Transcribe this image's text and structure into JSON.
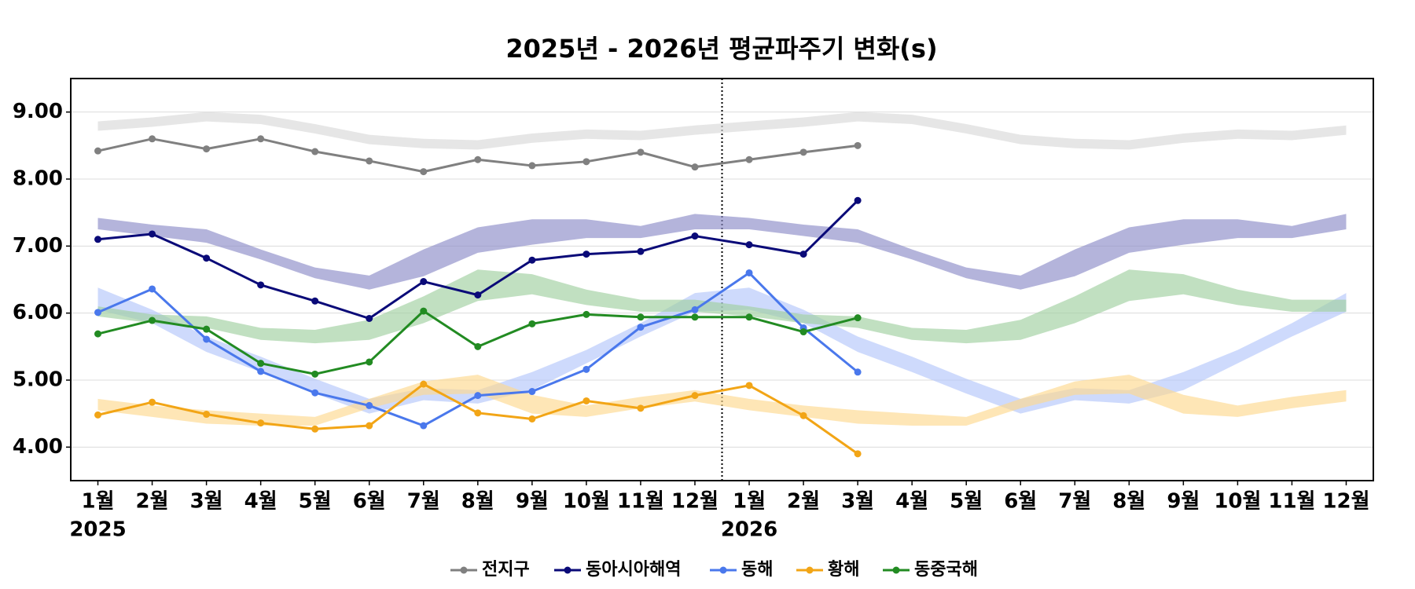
{
  "chart_data": {
    "type": "line",
    "title": "2025년 - 2026년 평균파주기 변화(s)",
    "categories": [
      "1월",
      "2월",
      "3월",
      "4월",
      "5월",
      "6월",
      "7월",
      "8월",
      "9월",
      "10월",
      "11월",
      "12월",
      "1월",
      "2월",
      "3월",
      "4월",
      "5월",
      "6월",
      "7월",
      "8월",
      "9월",
      "10월",
      "11월",
      "12월"
    ],
    "years": [
      "2025",
      null,
      null,
      null,
      null,
      null,
      null,
      null,
      null,
      null,
      null,
      null,
      "2026",
      null,
      null,
      null,
      null,
      null,
      null,
      null,
      null,
      null,
      null,
      null
    ],
    "ylim": [
      3.5,
      9.5
    ],
    "yticks": [
      {
        "value": 4,
        "label": "4.00"
      },
      {
        "value": 5,
        "label": "5.00"
      },
      {
        "value": 6,
        "label": "6.00"
      },
      {
        "value": 7,
        "label": "7.00"
      },
      {
        "value": 8,
        "label": "8.00"
      },
      {
        "value": 9,
        "label": "9.00"
      }
    ],
    "grid": true,
    "legend": "bottom",
    "series": [
      {
        "name": "전지구",
        "color": "#808080",
        "band_color": "#d9d9d9",
        "values": [
          8.42,
          8.6,
          8.45,
          8.6,
          8.41,
          8.27,
          8.11,
          8.29,
          8.2,
          8.26,
          8.4,
          8.18,
          8.29,
          8.4,
          8.5,
          null,
          null,
          null,
          null,
          null,
          null,
          null,
          null,
          null
        ],
        "band_low": [
          8.72,
          8.78,
          8.86,
          8.82,
          8.68,
          8.52,
          8.46,
          8.44,
          8.54,
          8.6,
          8.58,
          8.66,
          8.72,
          8.78,
          8.86,
          8.82,
          8.68,
          8.52,
          8.46,
          8.44,
          8.54,
          8.6,
          8.58,
          8.66
        ],
        "band_high": [
          8.86,
          8.92,
          9.0,
          8.96,
          8.82,
          8.66,
          8.6,
          8.58,
          8.68,
          8.74,
          8.72,
          8.8,
          8.86,
          8.92,
          9.0,
          8.96,
          8.82,
          8.66,
          8.6,
          8.58,
          8.68,
          8.74,
          8.72,
          8.8
        ]
      },
      {
        "name": "동아시아해역",
        "color": "#0a0a78",
        "band_color": "#8c8cc8",
        "values": [
          7.1,
          7.18,
          6.82,
          6.42,
          6.18,
          5.92,
          6.47,
          6.27,
          6.79,
          6.88,
          6.92,
          7.15,
          7.02,
          6.88,
          7.68,
          null,
          null,
          null,
          null,
          null,
          null,
          null,
          null,
          null
        ],
        "band_low": [
          7.25,
          7.15,
          7.05,
          6.8,
          6.52,
          6.35,
          6.55,
          6.9,
          7.02,
          7.12,
          7.12,
          7.25,
          7.25,
          7.15,
          7.05,
          6.8,
          6.52,
          6.35,
          6.55,
          6.9,
          7.02,
          7.12,
          7.12,
          7.25
        ],
        "band_high": [
          7.42,
          7.32,
          7.25,
          6.95,
          6.68,
          6.56,
          6.95,
          7.28,
          7.4,
          7.4,
          7.3,
          7.48,
          7.42,
          7.32,
          7.25,
          6.95,
          6.68,
          6.56,
          6.95,
          7.28,
          7.4,
          7.4,
          7.3,
          7.48
        ]
      },
      {
        "name": "동해",
        "color": "#4a78ec",
        "band_color": "#b3c6fb",
        "values": [
          6.01,
          6.36,
          5.61,
          5.13,
          4.81,
          4.62,
          4.32,
          4.77,
          4.83,
          5.16,
          5.79,
          6.05,
          6.6,
          5.78,
          5.12,
          null,
          null,
          null,
          null,
          null,
          null,
          null,
          null,
          null
        ],
        "band_low": [
          6.05,
          5.85,
          5.42,
          5.12,
          4.8,
          4.5,
          4.7,
          4.65,
          4.85,
          5.25,
          5.65,
          6.02,
          6.05,
          5.85,
          5.42,
          5.12,
          4.8,
          4.5,
          4.7,
          4.65,
          4.85,
          5.25,
          5.65,
          6.02
        ],
        "band_high": [
          6.38,
          6.05,
          5.65,
          5.35,
          5.02,
          4.72,
          4.88,
          4.85,
          5.12,
          5.45,
          5.85,
          6.3,
          6.38,
          6.05,
          5.65,
          5.35,
          5.02,
          4.72,
          4.88,
          4.85,
          5.12,
          5.45,
          5.85,
          6.3
        ]
      },
      {
        "name": "황해",
        "color": "#f2a516",
        "band_color": "#fdd98f",
        "values": [
          4.48,
          4.67,
          4.49,
          4.36,
          4.27,
          4.32,
          4.94,
          4.51,
          4.42,
          4.69,
          4.58,
          4.77,
          4.92,
          4.47,
          3.9,
          null,
          null,
          null,
          null,
          null,
          null,
          null,
          null,
          null
        ],
        "band_low": [
          4.55,
          4.45,
          4.35,
          4.32,
          4.32,
          4.58,
          4.78,
          4.8,
          4.5,
          4.45,
          4.58,
          4.68,
          4.55,
          4.45,
          4.35,
          4.32,
          4.32,
          4.58,
          4.78,
          4.8,
          4.5,
          4.45,
          4.58,
          4.68
        ],
        "band_high": [
          4.72,
          4.62,
          4.55,
          4.5,
          4.45,
          4.72,
          4.98,
          5.08,
          4.78,
          4.62,
          4.75,
          4.85,
          4.72,
          4.62,
          4.55,
          4.5,
          4.45,
          4.72,
          4.98,
          5.08,
          4.78,
          4.62,
          4.75,
          4.85
        ]
      },
      {
        "name": "동중국해",
        "color": "#228b22",
        "band_color": "#9fd09f",
        "values": [
          5.69,
          5.89,
          5.76,
          5.25,
          5.09,
          5.27,
          6.03,
          5.5,
          5.84,
          5.98,
          5.94,
          5.94,
          5.94,
          5.72,
          5.93,
          null,
          null,
          null,
          null,
          null,
          null,
          null,
          null,
          null
        ],
        "band_low": [
          5.95,
          5.85,
          5.78,
          5.6,
          5.55,
          5.6,
          5.85,
          6.18,
          6.28,
          6.12,
          6.02,
          6.02,
          5.95,
          5.85,
          5.78,
          5.6,
          5.55,
          5.6,
          5.85,
          6.18,
          6.28,
          6.12,
          6.02,
          6.02
        ],
        "band_high": [
          6.1,
          5.98,
          5.95,
          5.78,
          5.75,
          5.9,
          6.25,
          6.65,
          6.58,
          6.35,
          6.2,
          6.2,
          6.1,
          5.98,
          5.95,
          5.78,
          5.75,
          5.9,
          6.25,
          6.65,
          6.58,
          6.35,
          6.2,
          6.2
        ]
      }
    ]
  }
}
